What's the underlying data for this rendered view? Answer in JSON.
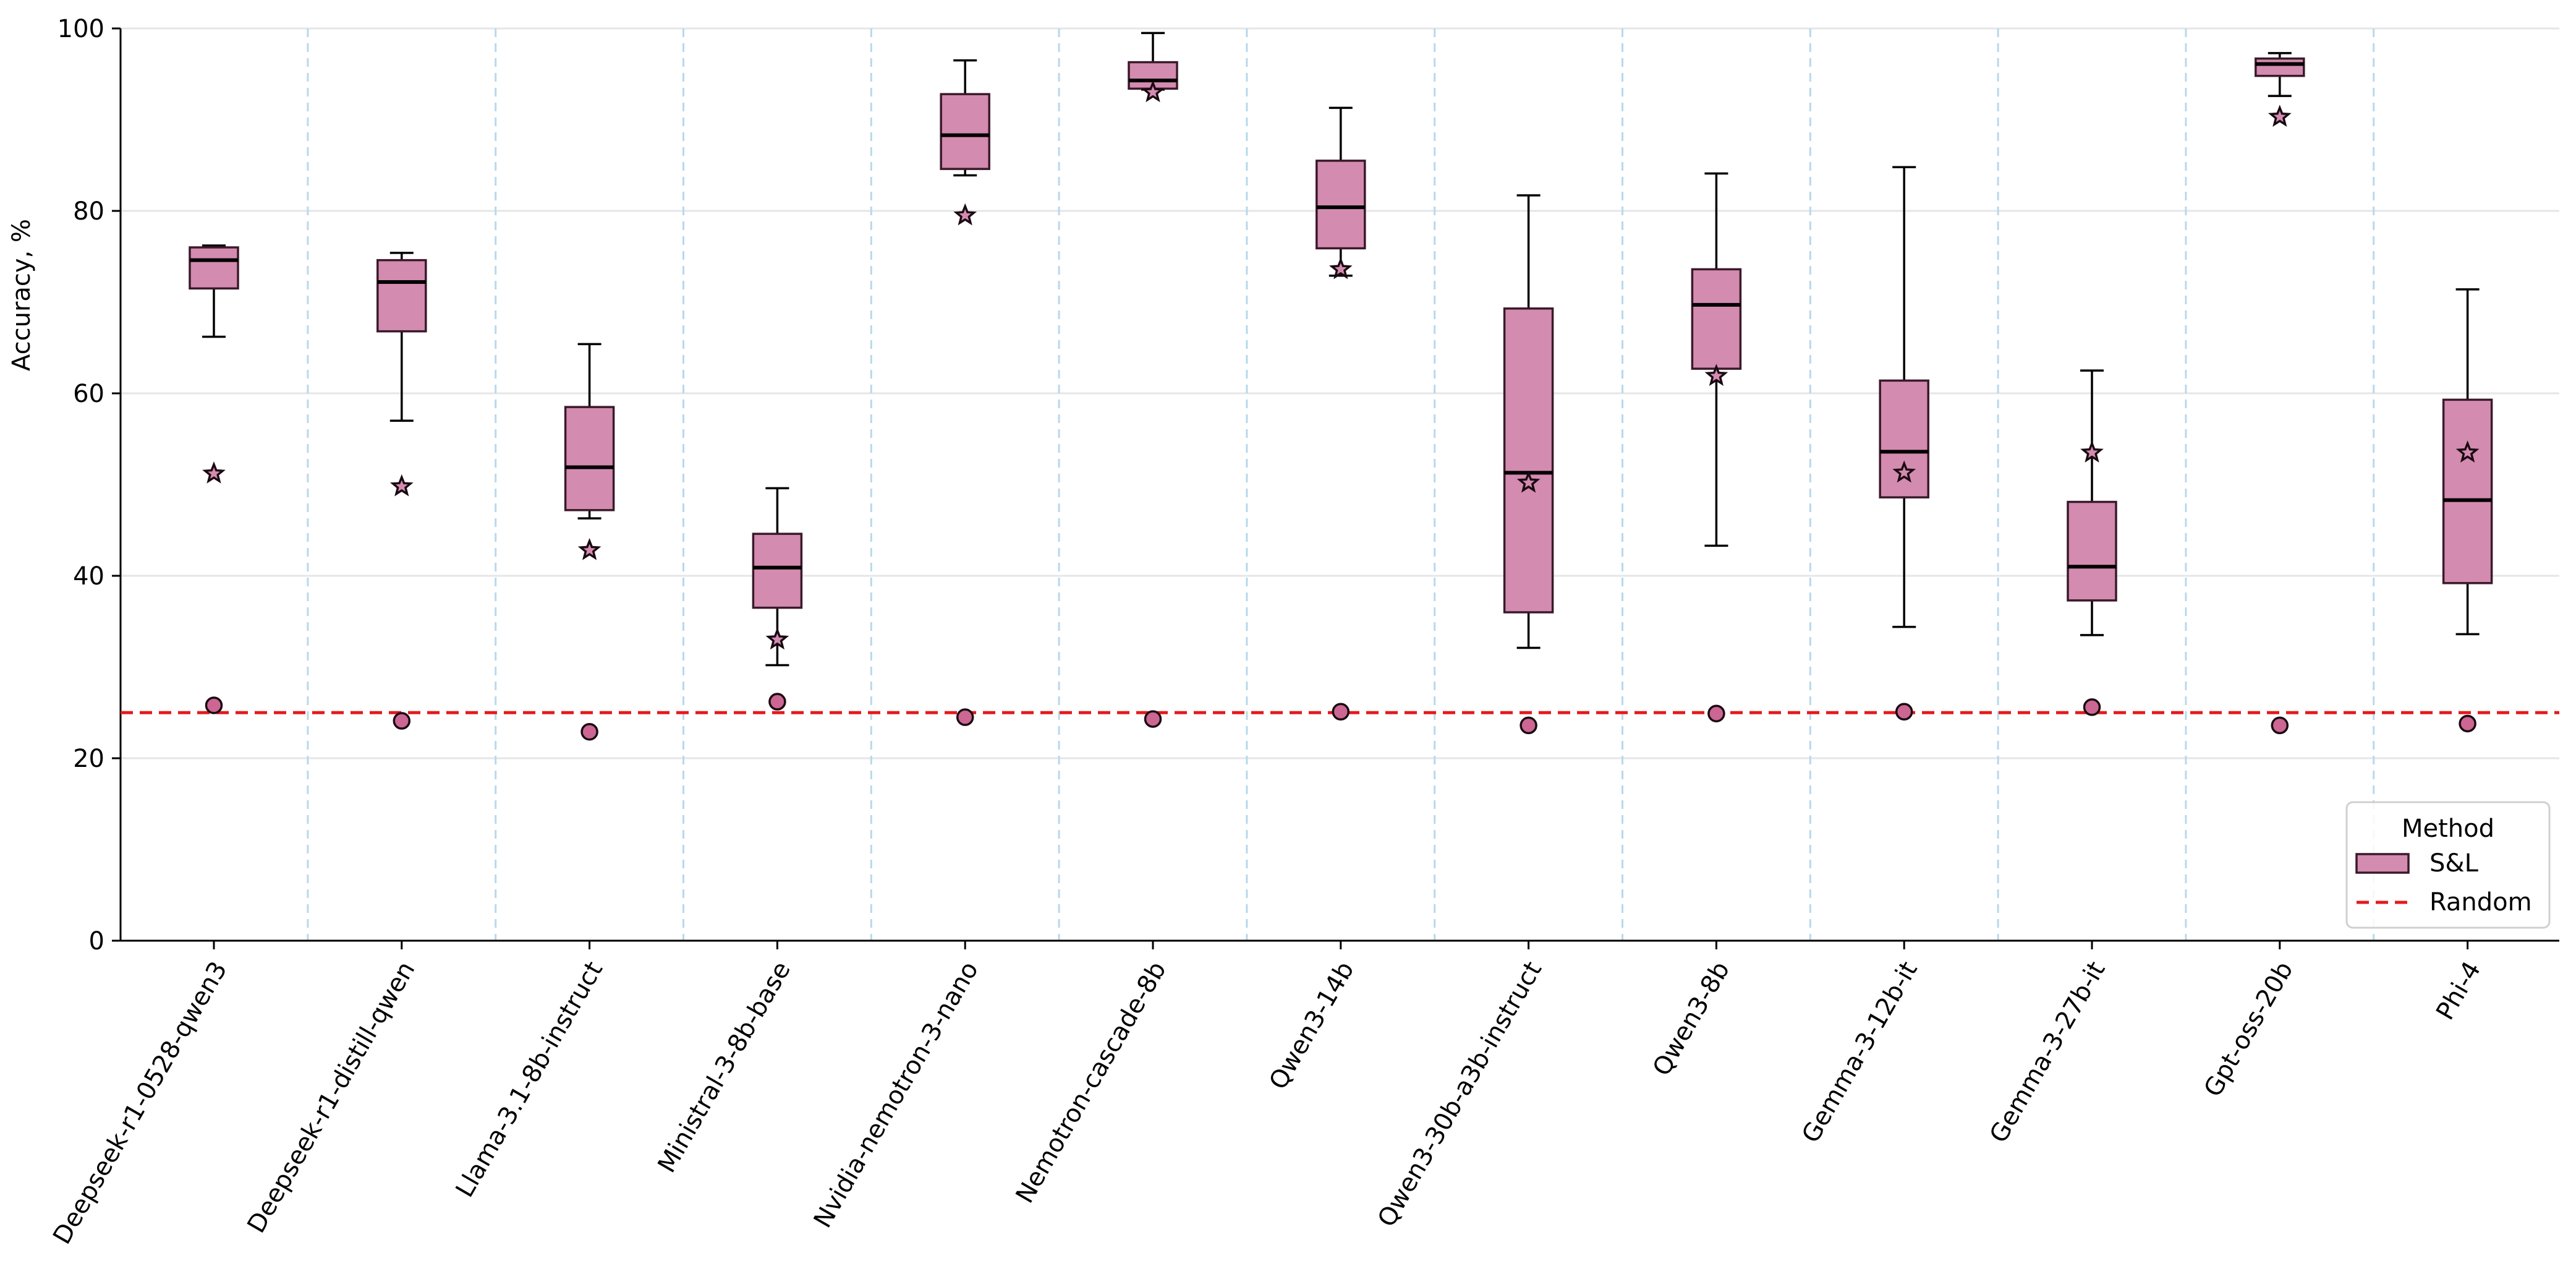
{
  "chart_data": {
    "type": "box",
    "title": "",
    "xlabel": "",
    "ylabel": "Accuracy, %",
    "ylim": [
      0,
      100
    ],
    "yticks": [
      0,
      20,
      40,
      60,
      80,
      100
    ],
    "grid": "horizontal",
    "legend": {
      "title": "Method",
      "placement": "lower-right",
      "entries": [
        {
          "label": "S&L",
          "kind": "box",
          "color": "#d48bb0"
        },
        {
          "label": "Random",
          "kind": "dashed-line",
          "color": "#e41a1c"
        }
      ]
    },
    "random_baseline": 25,
    "colors": {
      "box_fill": "#d48bb0",
      "box_edge": "#3a1a2a",
      "circle_fill": "#cc6692",
      "random_line": "#e41a1c",
      "separator": "#b8d8ec",
      "grid": "#e6e6e6"
    },
    "categories": [
      "Deepseek-r1-0528-qwen3",
      "Deepseek-r1-distill-qwen",
      "Llama-3.1-8b-instruct",
      "Ministral-3-8b-base",
      "Nvidia-nemotron-3-nano",
      "Nemotron-cascade-8b",
      "Qwen3-14b",
      "Qwen3-30b-a3b-instruct",
      "Qwen3-8b",
      "Gemma-3-12b-it",
      "Gemma-3-27b-it",
      "Gpt-oss-20b",
      "Phi-4"
    ],
    "series": [
      {
        "name": "S&L",
        "boxes": [
          {
            "whisker_low": 66.2,
            "q1": 71.5,
            "median": 74.6,
            "q3": 76.0,
            "whisker_high": 76.2
          },
          {
            "whisker_low": 57.0,
            "q1": 66.8,
            "median": 72.2,
            "q3": 74.6,
            "whisker_high": 75.4
          },
          {
            "whisker_low": 46.3,
            "q1": 47.2,
            "median": 51.9,
            "q3": 58.5,
            "whisker_high": 65.4
          },
          {
            "whisker_low": 30.2,
            "q1": 36.5,
            "median": 40.9,
            "q3": 44.6,
            "whisker_high": 49.6
          },
          {
            "whisker_low": 83.9,
            "q1": 84.6,
            "median": 88.3,
            "q3": 92.8,
            "whisker_high": 96.5
          },
          {
            "whisker_low": 93.3,
            "q1": 93.4,
            "median": 94.3,
            "q3": 96.3,
            "whisker_high": 99.5
          },
          {
            "whisker_low": 72.9,
            "q1": 75.9,
            "median": 80.4,
            "q3": 85.5,
            "whisker_high": 91.3
          },
          {
            "whisker_low": 32.1,
            "q1": 36.0,
            "median": 51.3,
            "q3": 69.3,
            "whisker_high": 81.7
          },
          {
            "whisker_low": 43.3,
            "q1": 62.7,
            "median": 69.7,
            "q3": 73.6,
            "whisker_high": 84.1
          },
          {
            "whisker_low": 34.4,
            "q1": 48.6,
            "median": 53.6,
            "q3": 61.4,
            "whisker_high": 84.8
          },
          {
            "whisker_low": 33.5,
            "q1": 37.3,
            "median": 41.0,
            "q3": 48.1,
            "whisker_high": 62.5
          },
          {
            "whisker_low": 92.6,
            "q1": 94.8,
            "median": 96.1,
            "q3": 96.7,
            "whisker_high": 97.3
          },
          {
            "whisker_low": 33.6,
            "q1": 39.2,
            "median": 48.3,
            "q3": 59.3,
            "whisker_high": 71.4
          }
        ],
        "star_marker": [
          51.2,
          49.8,
          42.8,
          33.0,
          79.5,
          93.0,
          73.6,
          50.2,
          61.9,
          51.3,
          53.5,
          90.3,
          53.5
        ],
        "circle_marker": [
          25.8,
          24.1,
          22.9,
          26.2,
          24.5,
          24.3,
          25.1,
          23.6,
          24.9,
          25.1,
          25.6,
          23.6,
          23.8
        ]
      }
    ]
  }
}
